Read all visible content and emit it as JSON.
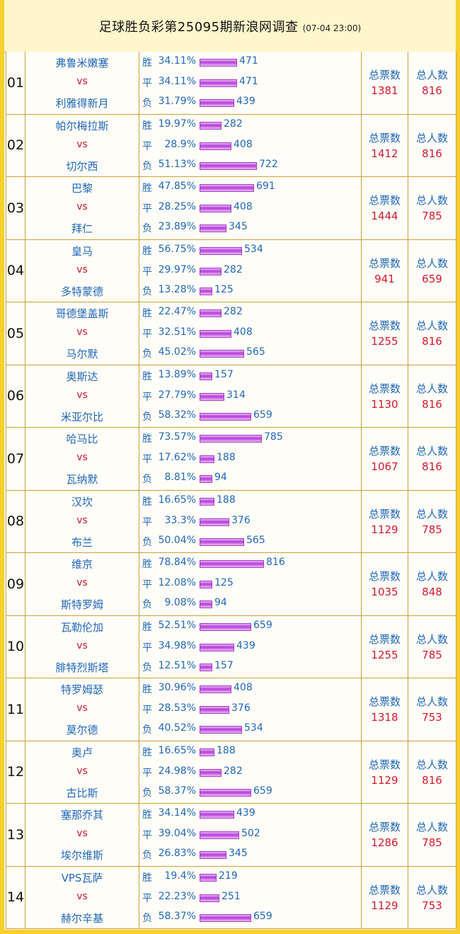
{
  "title": "足球胜负彩第25095期新浪网调查",
  "timestamp": "(07-04 23:00)",
  "labels": {
    "vs": "vs",
    "win": "胜",
    "draw": "平",
    "loss": "负",
    "total_votes": "总票数",
    "total_people": "总人数"
  },
  "colors": {
    "frame": "#f7cf2f",
    "team_text": "#2068b8",
    "vs_text": "#d3192f",
    "bar": "#b23cd8"
  },
  "matches": [
    {
      "no": "01",
      "home": "弗鲁米嫩塞",
      "away": "利雅得新月",
      "win_pct": "34.11%",
      "win": 471,
      "draw_pct": "34.11%",
      "draw": 471,
      "loss_pct": "31.79%",
      "loss": 439,
      "total": "1381",
      "people": "816"
    },
    {
      "no": "02",
      "home": "帕尔梅拉斯",
      "away": "切尔西",
      "win_pct": "19.97%",
      "win": 282,
      "draw_pct": "28.9%",
      "draw": 408,
      "loss_pct": "51.13%",
      "loss": 722,
      "total": "1412",
      "people": "816"
    },
    {
      "no": "03",
      "home": "巴黎",
      "away": "拜仁",
      "win_pct": "47.85%",
      "win": 691,
      "draw_pct": "28.25%",
      "draw": 408,
      "loss_pct": "23.89%",
      "loss": 345,
      "total": "1444",
      "people": "785"
    },
    {
      "no": "04",
      "home": "皇马",
      "away": "多特蒙德",
      "win_pct": "56.75%",
      "win": 534,
      "draw_pct": "29.97%",
      "draw": 282,
      "loss_pct": "13.28%",
      "loss": 125,
      "total": "941",
      "people": "659"
    },
    {
      "no": "05",
      "home": "哥德堡盖斯",
      "away": "马尔默",
      "win_pct": "22.47%",
      "win": 282,
      "draw_pct": "32.51%",
      "draw": 408,
      "loss_pct": "45.02%",
      "loss": 565,
      "total": "1255",
      "people": "816"
    },
    {
      "no": "06",
      "home": "奥斯达",
      "away": "米亚尔比",
      "win_pct": "13.89%",
      "win": 157,
      "draw_pct": "27.79%",
      "draw": 314,
      "loss_pct": "58.32%",
      "loss": 659,
      "total": "1130",
      "people": "816"
    },
    {
      "no": "07",
      "home": "哈马比",
      "away": "瓦纳默",
      "win_pct": "73.57%",
      "win": 785,
      "draw_pct": "17.62%",
      "draw": 188,
      "loss_pct": "8.81%",
      "loss": 94,
      "total": "1067",
      "people": "816"
    },
    {
      "no": "08",
      "home": "汉坎",
      "away": "布兰",
      "win_pct": "16.65%",
      "win": 188,
      "draw_pct": "33.3%",
      "draw": 376,
      "loss_pct": "50.04%",
      "loss": 565,
      "total": "1129",
      "people": "785"
    },
    {
      "no": "09",
      "home": "维京",
      "away": "斯特罗姆",
      "win_pct": "78.84%",
      "win": 816,
      "draw_pct": "12.08%",
      "draw": 125,
      "loss_pct": "9.08%",
      "loss": 94,
      "total": "1035",
      "people": "848"
    },
    {
      "no": "10",
      "home": "瓦勒伦加",
      "away": "腓特烈斯塔",
      "win_pct": "52.51%",
      "win": 659,
      "draw_pct": "34.98%",
      "draw": 439,
      "loss_pct": "12.51%",
      "loss": 157,
      "total": "1255",
      "people": "785"
    },
    {
      "no": "11",
      "home": "特罗姆瑟",
      "away": "莫尔德",
      "win_pct": "30.96%",
      "win": 408,
      "draw_pct": "28.53%",
      "draw": 376,
      "loss_pct": "40.52%",
      "loss": 534,
      "total": "1318",
      "people": "753"
    },
    {
      "no": "12",
      "home": "奥卢",
      "away": "古比斯",
      "win_pct": "16.65%",
      "win": 188,
      "draw_pct": "24.98%",
      "draw": 282,
      "loss_pct": "58.37%",
      "loss": 659,
      "total": "1129",
      "people": "816"
    },
    {
      "no": "13",
      "home": "塞那乔其",
      "away": "埃尔维斯",
      "win_pct": "34.14%",
      "win": 439,
      "draw_pct": "39.04%",
      "draw": 502,
      "loss_pct": "26.83%",
      "loss": 345,
      "total": "1286",
      "people": "785"
    },
    {
      "no": "14",
      "home": "VPS瓦萨",
      "away": "赫尔辛基",
      "win_pct": "19.4%",
      "win": 219,
      "draw_pct": "22.23%",
      "draw": 251,
      "loss_pct": "58.37%",
      "loss": 659,
      "total": "1129",
      "people": "753"
    }
  ]
}
